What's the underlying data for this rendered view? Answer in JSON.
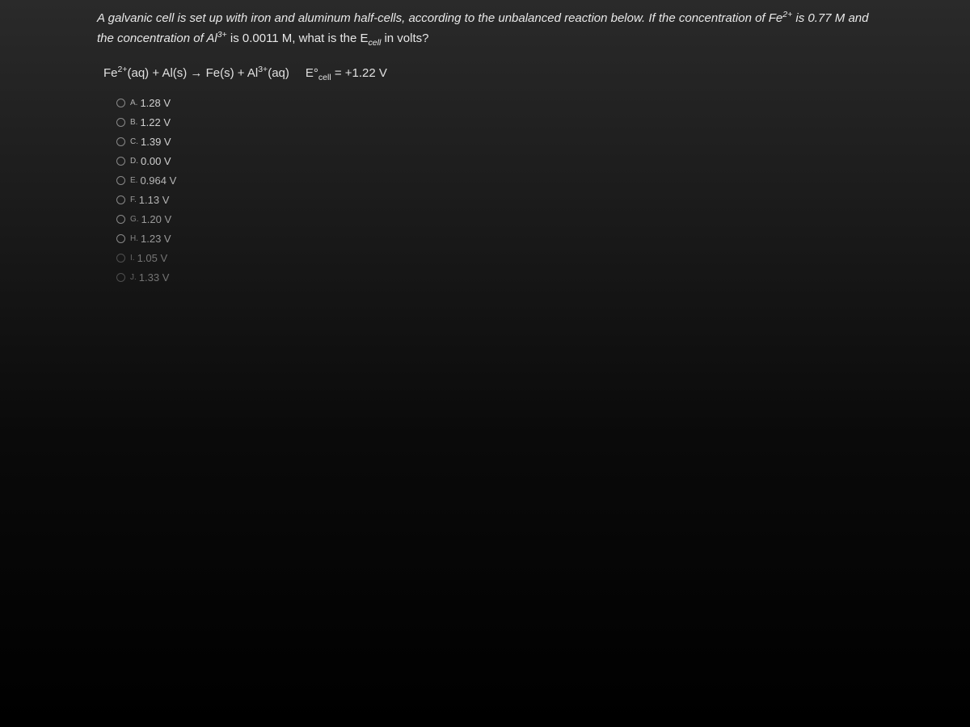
{
  "question": {
    "line1_prefix": "A galvanic cell is set up with iron and aluminum half-cells, according to the unbalanced reaction below. If the concentration of Fe",
    "line1_sup": "2+",
    "line1_suffix": " is 0.77 M and",
    "line2_prefix": "the concentration of Al",
    "line2_sup": "3+",
    "line2_mid": " is 0.0011 M, what is the E",
    "line2_sub": "cell",
    "line2_suffix": " in volts?"
  },
  "equation": {
    "fe_ion": "Fe",
    "fe_sup": "2+",
    "aq1": "(aq) + Al(s) → Fe(s) + Al",
    "al_sup": "3+",
    "aq2": "(aq)",
    "ecell_prefix": "E°",
    "ecell_sub": "cell",
    "ecell_value": " = +1.22 V"
  },
  "options": [
    {
      "letter": "A.",
      "value": "1.28 V"
    },
    {
      "letter": "B.",
      "value": "1.22 V"
    },
    {
      "letter": "C.",
      "value": "1.39 V"
    },
    {
      "letter": "D.",
      "value": "0.00 V"
    },
    {
      "letter": "E.",
      "value": "0.964 V"
    },
    {
      "letter": "F.",
      "value": "1.13 V"
    },
    {
      "letter": "G.",
      "value": "1.20 V"
    },
    {
      "letter": "H.",
      "value": "1.23 V"
    },
    {
      "letter": "I.",
      "value": "1.05 V"
    },
    {
      "letter": "J.",
      "value": "1.33 V"
    }
  ],
  "styling": {
    "background_gradient_start": "#2a2a2a",
    "background_gradient_end": "#000000",
    "text_color": "#e0e0e0",
    "question_color": "#e8e8e8",
    "option_color": "#d0d0d0",
    "radio_border": "#888888",
    "question_fontsize": 15,
    "option_fontsize": 13
  }
}
